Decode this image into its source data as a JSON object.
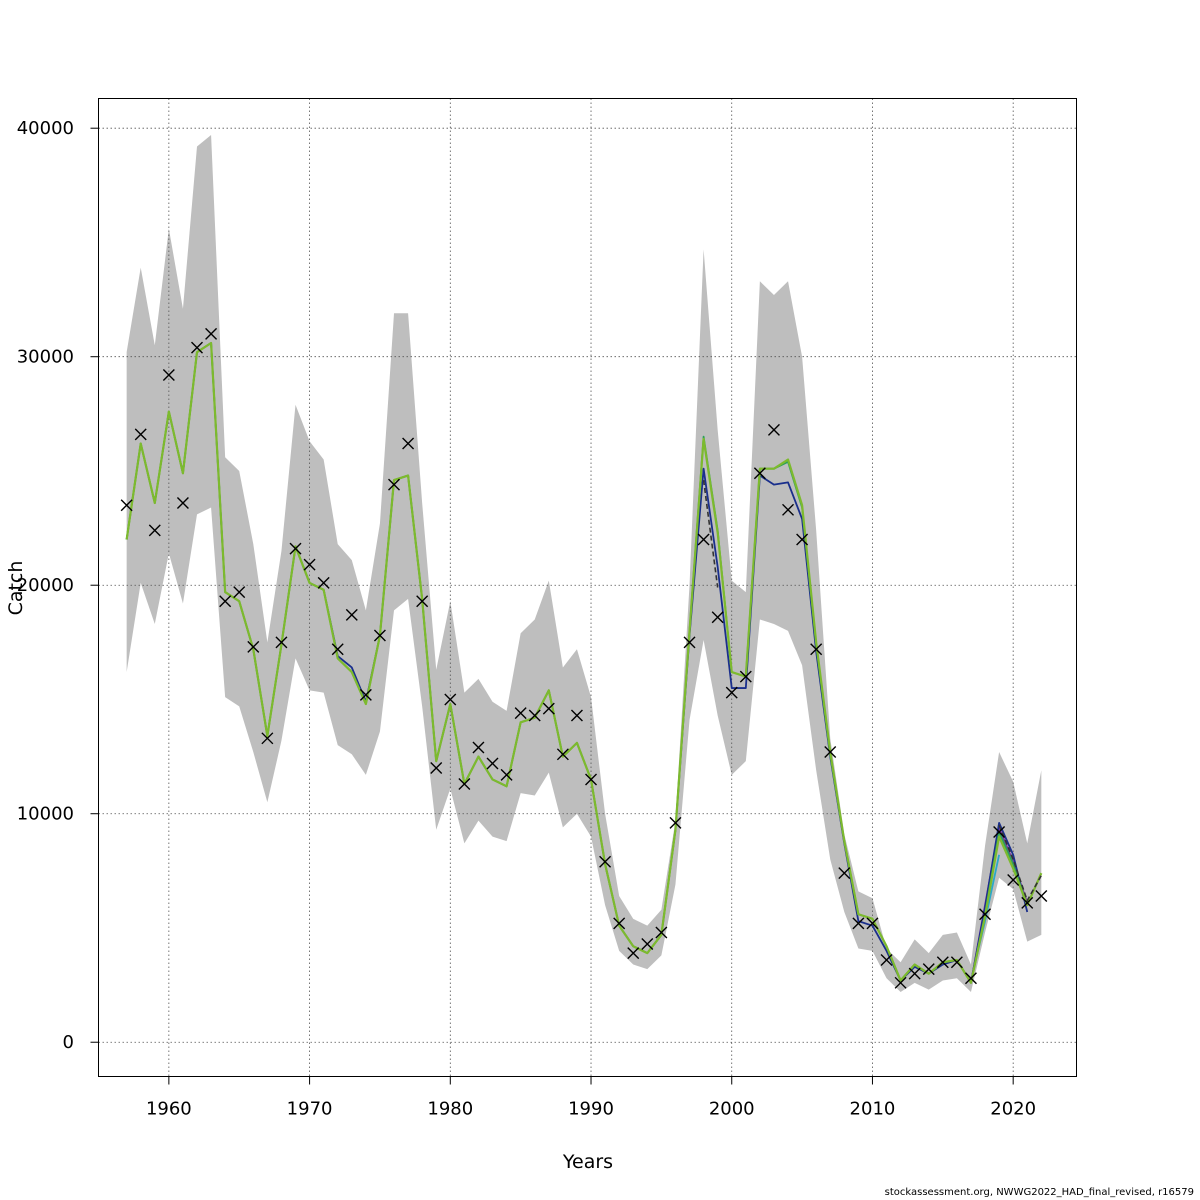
{
  "chart_data": {
    "type": "line",
    "xlabel": "Years",
    "ylabel": "Catch",
    "xlim": [
      1955,
      2024.5
    ],
    "ylim": [
      -1500,
      41300
    ],
    "x_ticks": [
      1960,
      1970,
      1980,
      1990,
      2000,
      2010,
      2020
    ],
    "y_ticks": [
      0,
      10000,
      20000,
      30000,
      40000
    ],
    "grid": true,
    "years": [
      1957,
      1958,
      1959,
      1960,
      1961,
      1962,
      1963,
      1964,
      1965,
      1966,
      1967,
      1968,
      1969,
      1970,
      1971,
      1972,
      1973,
      1974,
      1975,
      1976,
      1977,
      1978,
      1979,
      1980,
      1981,
      1982,
      1983,
      1984,
      1985,
      1986,
      1987,
      1988,
      1989,
      1990,
      1991,
      1992,
      1993,
      1994,
      1995,
      1996,
      1997,
      1998,
      1999,
      2000,
      2001,
      2002,
      2003,
      2004,
      2005,
      2006,
      2007,
      2008,
      2009,
      2010,
      2011,
      2012,
      2013,
      2014,
      2015,
      2016,
      2017,
      2018,
      2019,
      2020,
      2021,
      2022
    ],
    "band_upper": [
      30200,
      33900,
      30500,
      35600,
      32100,
      39200,
      39700,
      25600,
      25000,
      21800,
      17500,
      21500,
      27900,
      26300,
      25500,
      21800,
      21100,
      18900,
      22700,
      31900,
      31900,
      23600,
      16300,
      19300,
      15300,
      15900,
      14900,
      14500,
      17900,
      18500,
      20200,
      16400,
      17200,
      15100,
      10000,
      6400,
      5400,
      5100,
      5800,
      9700,
      20000,
      34700,
      26800,
      20200,
      19700,
      33300,
      32700,
      33300,
      30000,
      22400,
      13300,
      9100,
      6600,
      6300,
      4100,
      3500,
      4500,
      3900,
      4700,
      4800,
      3400,
      8600,
      12700,
      11400,
      8700,
      11900
    ],
    "band_lower": [
      16200,
      20100,
      18300,
      21400,
      19200,
      23100,
      23400,
      15100,
      14700,
      12700,
      10500,
      13200,
      16800,
      15400,
      15300,
      13000,
      12600,
      11700,
      13600,
      18900,
      19400,
      14700,
      9300,
      11100,
      8700,
      9700,
      9000,
      8800,
      10900,
      10800,
      11800,
      9400,
      10000,
      9000,
      6000,
      4000,
      3400,
      3200,
      3800,
      6900,
      14100,
      17600,
      14300,
      11700,
      12300,
      18500,
      18300,
      18000,
      16500,
      11900,
      8000,
      5700,
      4100,
      4000,
      2800,
      2200,
      2600,
      2300,
      2700,
      2800,
      2200,
      4800,
      7200,
      6700,
      4400,
      4700
    ],
    "observed": [
      23500,
      26600,
      22400,
      29200,
      23600,
      30400,
      31000,
      19300,
      19700,
      17300,
      13300,
      17500,
      21600,
      20900,
      20100,
      17200,
      18700,
      15200,
      17800,
      24400,
      26200,
      19300,
      12000,
      15000,
      11300,
      12900,
      12200,
      11700,
      14400,
      14300,
      14600,
      12600,
      14300,
      11500,
      7900,
      5200,
      3900,
      4300,
      4800,
      9600,
      17500,
      22000,
      18600,
      15300,
      16000,
      24900,
      26800,
      23300,
      22000,
      17200,
      12700,
      7400,
      5200,
      5200,
      3600,
      2600,
      3000,
      3200,
      3500,
      3500,
      2800,
      5600,
      9200,
      7100,
      6100,
      6400
    ],
    "series": [
      {
        "color": "#7dba2e",
        "values": [
          22000,
          26200,
          23600,
          27600,
          24900,
          30200,
          30600,
          19700,
          19300,
          17200,
          13400,
          17400,
          21700,
          20100,
          19800,
          16800,
          16200,
          14800,
          17800,
          24600,
          24800,
          19400,
          12300,
          14800,
          11300,
          12500,
          11500,
          11200,
          14000,
          14200,
          15400,
          12500,
          13100,
          11500,
          7800,
          5100,
          4200,
          3900,
          4700,
          9300,
          18000,
          26400,
          22300,
          16200,
          16000,
          25100,
          25100,
          25500,
          23500,
          17500,
          12700,
          8800,
          5600,
          5400,
          4200,
          2700,
          3400,
          3000,
          3500,
          3600,
          2600,
          5500,
          9000,
          7600,
          6000,
          7400
        ]
      },
      {
        "color": "#2ca05a",
        "values": [
          22000,
          26200,
          23600,
          27600,
          24900,
          30200,
          30600,
          19700,
          19300,
          17200,
          13400,
          17400,
          21700,
          20100,
          19800,
          16800,
          16200,
          14800,
          17800,
          24600,
          24800,
          19400,
          12300,
          14800,
          11300,
          12500,
          11500,
          11200,
          14000,
          14200,
          15400,
          12500,
          13100,
          11500,
          7800,
          5100,
          4200,
          3900,
          4700,
          9300,
          18000,
          26500,
          22400,
          16200,
          16000,
          25100,
          25100,
          25400,
          23400,
          17400,
          12600,
          8800,
          5600,
          5400,
          4200,
          2700,
          3400,
          3000,
          3500,
          3600,
          2600,
          5600,
          9200,
          7800,
          6000,
          null
        ]
      },
      {
        "color": "#1a2f8c",
        "values": [
          22000,
          26200,
          23600,
          27600,
          24900,
          30200,
          30600,
          19700,
          19300,
          17200,
          13400,
          17400,
          21700,
          20100,
          19800,
          16900,
          16400,
          14900,
          17800,
          24600,
          24800,
          19400,
          12300,
          14800,
          11300,
          12500,
          11500,
          11200,
          14000,
          14200,
          15400,
          12500,
          13100,
          11500,
          7800,
          5100,
          4200,
          3900,
          4700,
          9300,
          17800,
          25100,
          20800,
          15500,
          15500,
          24800,
          24400,
          24500,
          22900,
          17100,
          12500,
          8700,
          5300,
          5100,
          4000,
          2700,
          3300,
          3000,
          3400,
          3600,
          2600,
          5900,
          9600,
          8200,
          5700,
          null
        ]
      },
      {
        "color": "#7a2fa8",
        "values": [
          null,
          null,
          null,
          null,
          null,
          null,
          null,
          null,
          null,
          null,
          null,
          null,
          null,
          null,
          null,
          null,
          null,
          null,
          null,
          null,
          null,
          null,
          null,
          null,
          null,
          null,
          null,
          null,
          null,
          null,
          null,
          null,
          null,
          null,
          null,
          null,
          null,
          null,
          null,
          null,
          null,
          null,
          null,
          null,
          null,
          null,
          null,
          null,
          null,
          null,
          null,
          null,
          null,
          null,
          null,
          null,
          null,
          null,
          null,
          null,
          2600,
          6000,
          9400,
          7900,
          6100,
          null
        ]
      },
      {
        "color": "#2aa8c8",
        "values": [
          null,
          null,
          null,
          null,
          null,
          null,
          null,
          null,
          null,
          null,
          null,
          null,
          null,
          null,
          null,
          null,
          null,
          null,
          null,
          null,
          null,
          null,
          null,
          null,
          null,
          null,
          null,
          null,
          null,
          null,
          null,
          null,
          null,
          null,
          null,
          null,
          null,
          null,
          null,
          null,
          null,
          null,
          null,
          null,
          null,
          null,
          null,
          null,
          null,
          null,
          null,
          null,
          null,
          null,
          null,
          null,
          null,
          null,
          null,
          null,
          2700,
          5300,
          8200,
          null,
          null,
          null
        ]
      }
    ],
    "dashed": [
      null,
      null,
      null,
      null,
      null,
      null,
      null,
      null,
      null,
      null,
      null,
      null,
      null,
      null,
      null,
      null,
      null,
      null,
      null,
      null,
      null,
      null,
      null,
      null,
      null,
      null,
      null,
      null,
      null,
      null,
      null,
      null,
      null,
      null,
      null,
      null,
      null,
      null,
      null,
      null,
      null,
      24600,
      19900,
      null,
      null,
      null,
      null,
      null,
      null,
      null,
      null,
      null,
      null,
      null,
      null,
      null,
      null,
      null,
      null,
      null,
      null,
      null,
      9500,
      8000,
      6200,
      7300
    ]
  },
  "footer": "stockassessment.org, NWWG2022_HAD_final_revised, r16579"
}
